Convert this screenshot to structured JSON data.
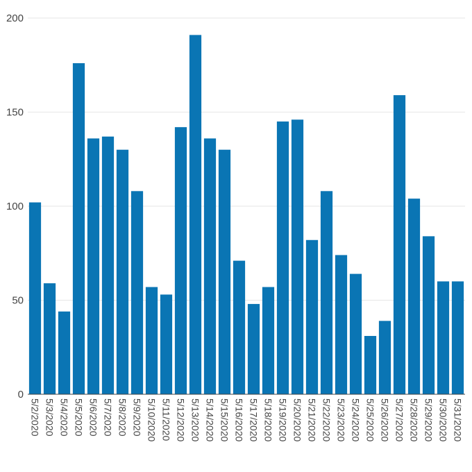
{
  "colors": {
    "bar": "#0a75b4",
    "grid": "#e6e6e6",
    "text": "#444444"
  },
  "chart_data": {
    "type": "bar",
    "title": "",
    "xlabel": "",
    "ylabel": "",
    "ylim": [
      0,
      200
    ],
    "yticks": [
      0,
      50,
      100,
      150,
      200
    ],
    "grid": true,
    "legend": "none",
    "categories": [
      "5/2/2020",
      "5/3/2020",
      "5/4/2020",
      "5/5/2020",
      "5/6/2020",
      "5/7/2020",
      "5/8/2020",
      "5/9/2020",
      "5/10/2020",
      "5/11/2020",
      "5/12/2020",
      "5/13/2020",
      "5/14/2020",
      "5/15/2020",
      "5/16/2020",
      "5/17/2020",
      "5/18/2020",
      "5/19/2020",
      "5/20/2020",
      "5/21/2020",
      "5/22/2020",
      "5/23/2020",
      "5/24/2020",
      "5/25/2020",
      "5/26/2020",
      "5/27/2020",
      "5/28/2020",
      "5/29/2020",
      "5/30/2020",
      "5/31/2020"
    ],
    "values": [
      102,
      59,
      44,
      176,
      136,
      137,
      130,
      108,
      57,
      53,
      142,
      191,
      136,
      130,
      71,
      48,
      57,
      145,
      146,
      82,
      108,
      74,
      64,
      31,
      39,
      159,
      104,
      84,
      60,
      60
    ]
  }
}
